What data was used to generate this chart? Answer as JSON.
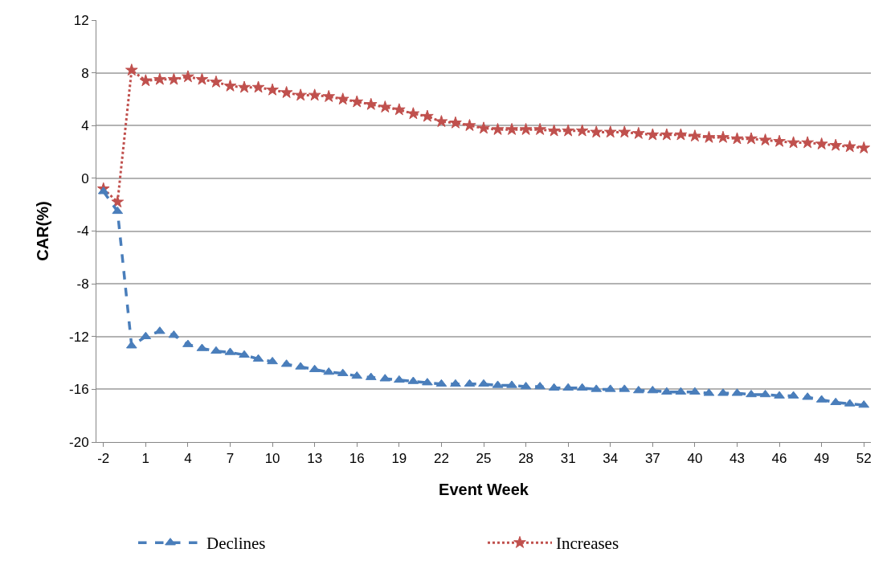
{
  "chart_data": {
    "type": "line",
    "xlabel": "Event Week",
    "ylabel": "CAR(%)",
    "x": [
      -2,
      -1,
      0,
      1,
      2,
      3,
      4,
      5,
      6,
      7,
      8,
      9,
      10,
      11,
      12,
      13,
      14,
      15,
      16,
      17,
      18,
      19,
      20,
      21,
      22,
      23,
      24,
      25,
      26,
      27,
      28,
      29,
      30,
      31,
      32,
      33,
      34,
      35,
      36,
      37,
      38,
      39,
      40,
      41,
      42,
      43,
      44,
      45,
      46,
      47,
      48,
      49,
      50,
      51,
      52
    ],
    "series": [
      {
        "name": "Declines",
        "color": "#4a7ebb",
        "marker": "triangle",
        "line_style": "dashed",
        "values": [
          -1.0,
          -2.5,
          -12.7,
          -12.0,
          -11.6,
          -11.9,
          -12.6,
          -12.9,
          -13.1,
          -13.2,
          -13.4,
          -13.7,
          -13.9,
          -14.1,
          -14.3,
          -14.5,
          -14.7,
          -14.8,
          -15.0,
          -15.1,
          -15.2,
          -15.3,
          -15.4,
          -15.5,
          -15.6,
          -15.6,
          -15.6,
          -15.6,
          -15.7,
          -15.7,
          -15.8,
          -15.8,
          -15.9,
          -15.9,
          -15.9,
          -16.0,
          -16.0,
          -16.0,
          -16.1,
          -16.1,
          -16.2,
          -16.2,
          -16.2,
          -16.3,
          -16.3,
          -16.3,
          -16.4,
          -16.4,
          -16.5,
          -16.5,
          -16.6,
          -16.8,
          -17.0,
          -17.1,
          -17.2
        ]
      },
      {
        "name": "Increases",
        "color": "#c0504d",
        "marker": "star",
        "line_style": "dotted",
        "values": [
          -0.8,
          -1.8,
          8.2,
          7.4,
          7.5,
          7.5,
          7.7,
          7.5,
          7.3,
          7.0,
          6.9,
          6.9,
          6.7,
          6.5,
          6.3,
          6.3,
          6.2,
          6.0,
          5.8,
          5.6,
          5.4,
          5.2,
          4.9,
          4.7,
          4.3,
          4.2,
          4.0,
          3.8,
          3.7,
          3.7,
          3.7,
          3.7,
          3.6,
          3.6,
          3.6,
          3.5,
          3.5,
          3.5,
          3.4,
          3.3,
          3.3,
          3.3,
          3.2,
          3.1,
          3.1,
          3.0,
          3.0,
          2.9,
          2.8,
          2.7,
          2.7,
          2.6,
          2.5,
          2.4,
          2.3
        ]
      }
    ],
    "xlim": [
      -2.5,
      52.5
    ],
    "xticks": [
      -2,
      1,
      4,
      7,
      10,
      13,
      16,
      19,
      22,
      25,
      28,
      31,
      34,
      37,
      40,
      43,
      46,
      49,
      52
    ],
    "ylim": [
      -20,
      12
    ],
    "yticks": [
      -20,
      -16,
      -12,
      -8,
      -4,
      0,
      4,
      8,
      12
    ],
    "grid": "y",
    "legend": "bottom"
  }
}
